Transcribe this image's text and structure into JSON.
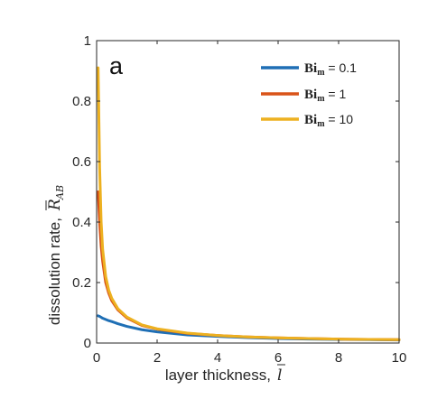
{
  "chart_data": {
    "type": "line",
    "panel_label": "a",
    "xlabel": "layer thickness,",
    "xlabel_symbol": "l",
    "ylabel": "dissolution rate,",
    "ylabel_symbol": "R",
    "ylabel_symbol_sub": "AB",
    "xlim": [
      0,
      10
    ],
    "ylim": [
      0,
      1
    ],
    "xticks": [
      "0",
      "2",
      "4",
      "6",
      "8",
      "10"
    ],
    "yticks": [
      "0",
      "0.2",
      "0.4",
      "0.6",
      "0.8",
      "1"
    ],
    "grid": false,
    "legend_position": "top-right",
    "x": [
      0.05,
      0.1,
      0.15,
      0.2,
      0.3,
      0.4,
      0.5,
      0.7,
      1,
      1.5,
      2,
      3,
      4,
      5,
      6,
      7,
      8,
      9,
      10
    ],
    "series": [
      {
        "name": "Bi_m = 0.1",
        "legend_main": "Bi",
        "legend_sub": "m",
        "legend_value": " = 0.1",
        "color": "#1f6fb5",
        "values": [
          0.09,
          0.088,
          0.085,
          0.082,
          0.078,
          0.074,
          0.071,
          0.064,
          0.055,
          0.044,
          0.037,
          0.027,
          0.022,
          0.018,
          0.015,
          0.013,
          0.012,
          0.011,
          0.01
        ]
      },
      {
        "name": "Bi_m = 1",
        "legend_main": "Bi",
        "legend_sub": "m",
        "legend_value": " = 1",
        "color": "#d95319",
        "values": [
          0.5,
          0.4,
          0.32,
          0.27,
          0.2,
          0.165,
          0.14,
          0.11,
          0.083,
          0.058,
          0.046,
          0.032,
          0.025,
          0.02,
          0.017,
          0.015,
          0.013,
          0.012,
          0.011
        ]
      },
      {
        "name": "Bi_m = 10",
        "legend_main": "Bi",
        "legend_sub": "m",
        "legend_value": " = 10",
        "color": "#edb120",
        "values": [
          0.91,
          0.58,
          0.4,
          0.31,
          0.22,
          0.175,
          0.148,
          0.114,
          0.086,
          0.06,
          0.047,
          0.033,
          0.025,
          0.02,
          0.017,
          0.015,
          0.013,
          0.012,
          0.011
        ]
      }
    ]
  }
}
